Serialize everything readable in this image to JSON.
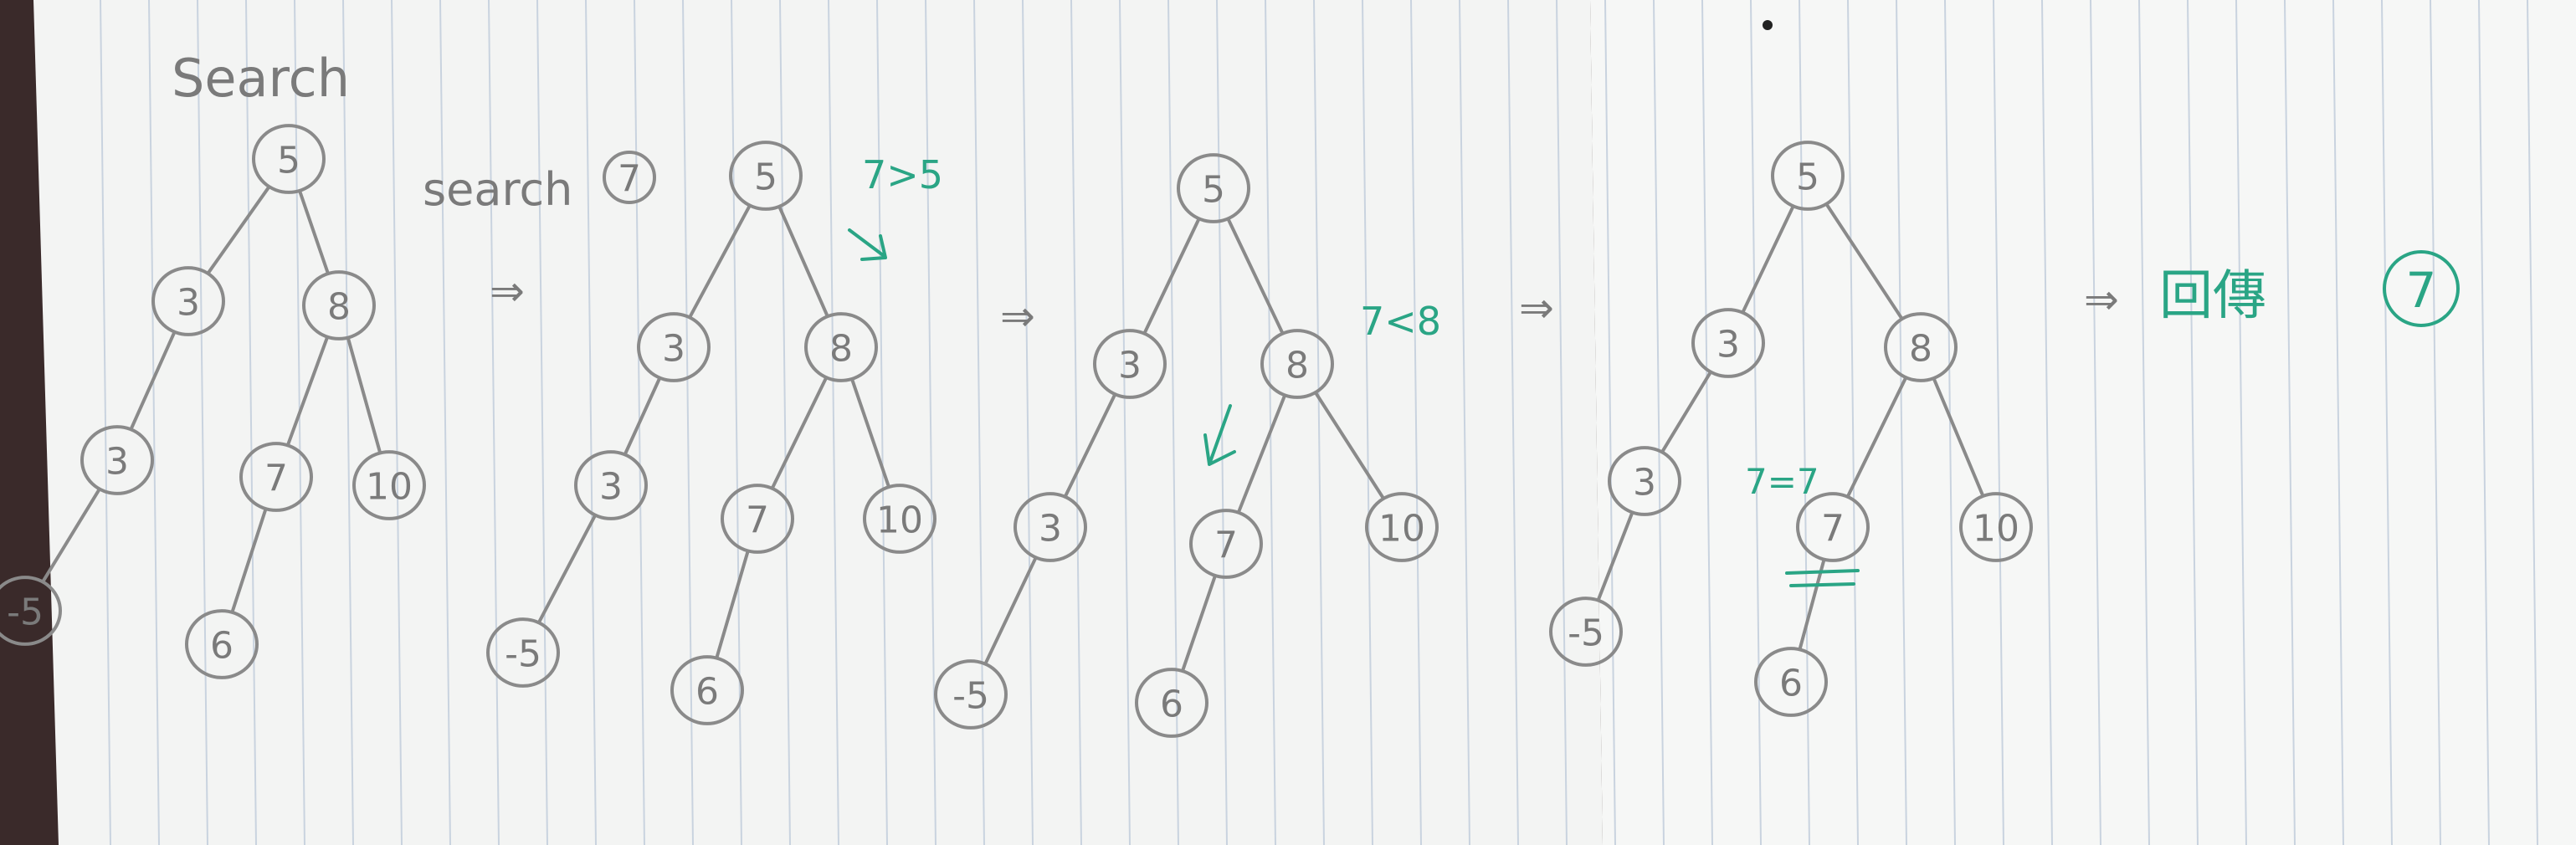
{
  "title": "Search",
  "search_label": "search",
  "search_target": "7",
  "step_arrow": "⇒",
  "annotations": {
    "cmp1": "7>5",
    "cmp2": "7<8",
    "cmp3": "7=7",
    "result_label": "回傳",
    "result_value": "7"
  },
  "tree": {
    "root": "5",
    "left": "3",
    "right": "8",
    "left_left": "3",
    "left_left_left": "-5",
    "right_left": "7",
    "right_right": "10",
    "right_left_left": "6"
  },
  "colors": {
    "paper": "#f4f5f4",
    "pencil": "#8a8a8a",
    "green_pen": "#2aa585",
    "rule_lines": "#c8d2de"
  }
}
